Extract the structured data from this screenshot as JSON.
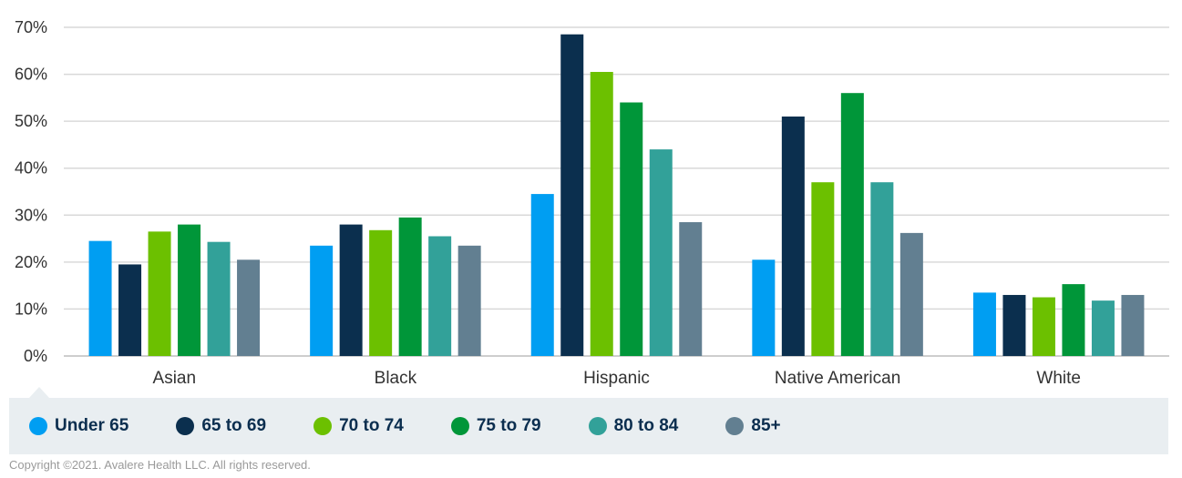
{
  "chart_data": {
    "type": "bar",
    "categories": [
      "Asian",
      "Black",
      "Hispanic",
      "Native American",
      "White"
    ],
    "series": [
      {
        "name": "Under 65",
        "color": "#009ef2",
        "values": [
          24.5,
          23.5,
          34.5,
          20.5,
          13.5
        ]
      },
      {
        "name": "65 to 69",
        "color": "#0b2f4e",
        "values": [
          19.5,
          28.0,
          68.5,
          51.0,
          13.0
        ]
      },
      {
        "name": "70 to 74",
        "color": "#6cc000",
        "values": [
          26.5,
          26.8,
          60.5,
          37.0,
          12.5
        ]
      },
      {
        "name": "75 to 79",
        "color": "#009639",
        "values": [
          28.0,
          29.5,
          54.0,
          56.0,
          15.3
        ]
      },
      {
        "name": "80 to 84",
        "color": "#32a199",
        "values": [
          24.3,
          25.5,
          44.0,
          37.0,
          11.8
        ]
      },
      {
        "name": "85+",
        "color": "#627f91",
        "values": [
          20.5,
          23.5,
          28.5,
          26.2,
          13.0
        ]
      }
    ],
    "yticks": [
      "0%",
      "10%",
      "20%",
      "30%",
      "40%",
      "50%",
      "60%",
      "70%"
    ],
    "ylim": [
      0,
      70
    ],
    "grid": true,
    "legend_position": "bottom"
  },
  "footer": {
    "copyright": "Copyright ©2021. Avalere Health LLC. All rights reserved."
  }
}
